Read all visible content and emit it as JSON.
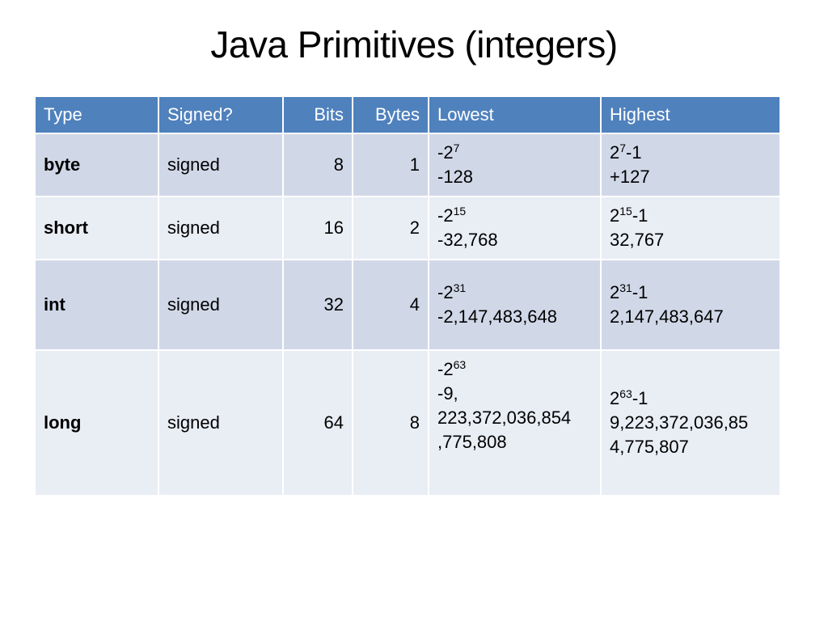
{
  "title": "Java Primitives (integers)",
  "table": {
    "headers": {
      "type": "Type",
      "signed": "Signed?",
      "bits": "Bits",
      "bytes": "Bytes",
      "lowest": "Lowest",
      "highest": "Highest"
    },
    "rows": [
      {
        "type": "byte",
        "signed": "signed",
        "bits": "8",
        "bytes": "1",
        "lowest_base": "-2",
        "lowest_exp": "7",
        "lowest_lines": [
          "-128"
        ],
        "highest_base": "2",
        "highest_exp": "7",
        "highest_suffix": "-1",
        "highest_lines": [
          "+127"
        ]
      },
      {
        "type": "short",
        "signed": "signed",
        "bits": "16",
        "bytes": "2",
        "lowest_base": "-2",
        "lowest_exp": "15",
        "lowest_lines": [
          "-32,768"
        ],
        "highest_base": "2",
        "highest_exp": "15",
        "highest_suffix": "-1",
        "highest_lines": [
          "32,767"
        ]
      },
      {
        "type": "int",
        "signed": "signed",
        "bits": "32",
        "bytes": "4",
        "lowest_base": "-2",
        "lowest_exp": "31",
        "lowest_lines": [
          "-2,147,483,648"
        ],
        "highest_base": "2",
        "highest_exp": "31",
        "highest_suffix": "-1",
        "highest_lines": [
          "2,147,483,647"
        ]
      },
      {
        "type": "long",
        "signed": "signed",
        "bits": "64",
        "bytes": "8",
        "lowest_base": "-2",
        "lowest_exp": "63",
        "lowest_lines": [
          "-9,",
          "223,372,036,854",
          ",775,808"
        ],
        "highest_base": "2",
        "highest_exp": "63",
        "highest_suffix": "-1",
        "highest_lines": [
          "9,223,372,036,85",
          "4,775,807"
        ]
      }
    ]
  }
}
